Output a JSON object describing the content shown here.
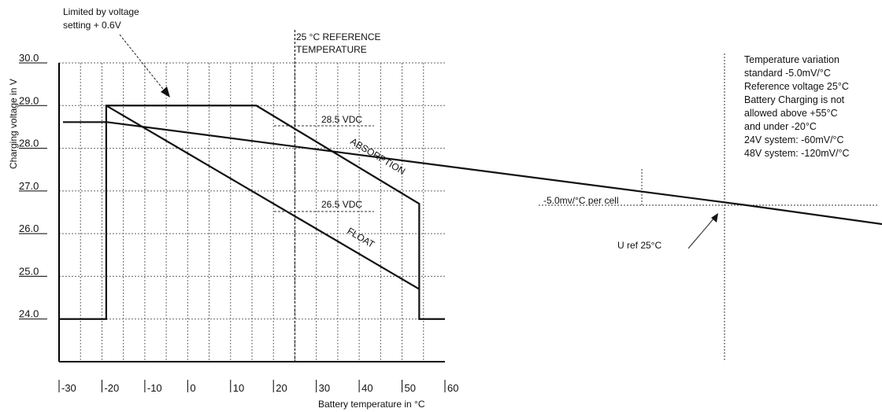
{
  "chart_data": [
    {
      "type": "line",
      "xlabel": "Battery temperature in °C",
      "ylabel": "Charging voltage in V",
      "xlim": [
        -30,
        60
      ],
      "ylim": [
        23,
        30
      ],
      "x_ticks": [
        "-30",
        "-20",
        "-10",
        "0",
        "10",
        "20",
        "30",
        "40",
        "50",
        "60"
      ],
      "y_ticks": [
        "30.0",
        "29.0",
        "28.0",
        "27.0",
        "26.0",
        "25.0",
        "24.0"
      ],
      "grid": true,
      "series": [
        {
          "name": "ABSORPTION",
          "points": [
            [
              -30,
              24.0
            ],
            [
              -19,
              24.0
            ],
            [
              -19,
              29.0
            ],
            [
              16,
              29.0
            ],
            [
              54,
              26.7
            ],
            [
              54,
              24.0
            ],
            [
              60,
              24.0
            ]
          ]
        },
        {
          "name": "FLOAT",
          "points": [
            [
              -19,
              29.0
            ],
            [
              54,
              24.7
            ]
          ]
        }
      ],
      "reference_line": {
        "x": 25,
        "label": "25 °C REFERENCE\nTEMPERATURE"
      },
      "annotations": {
        "limit_note": "Limited by voltage\nsetting + 0.6V",
        "absorption_value": "28.5 VDC",
        "float_value": "26.5 VDC",
        "absorption_label": "ABSORPTION",
        "float_label": "FLOAT"
      }
    },
    {
      "type": "line",
      "points": [
        [
          -30,
          0.7
        ],
        [
          -28,
          0.7
        ],
        [
          1,
          0
        ],
        [
          28,
          -0.7
        ],
        [
          31,
          -0.7
        ]
      ],
      "cell_label": "-5.0mv/°C per cell",
      "uref_label": "U ref 25°C",
      "info_lines": [
        "Temperature variation",
        "standard -5.0mV/°C",
        "Reference voltage 25°C",
        "Battery Charging is not",
        "allowed above +55°C",
        "and under -20°C",
        "24V system: -60mV/°C",
        "48V system: -120mV/°C"
      ]
    }
  ]
}
